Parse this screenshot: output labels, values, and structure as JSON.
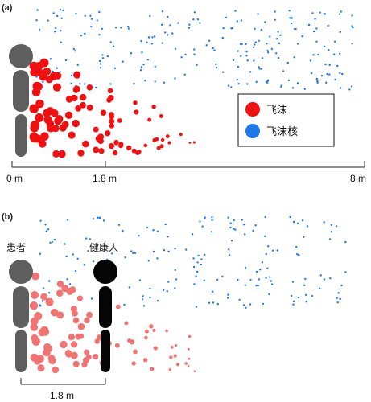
{
  "panel_a": {
    "label": "(a)",
    "scale": {
      "tick_start": "0 m",
      "tick_mid": "1.8 m",
      "tick_end": "8 m"
    },
    "legend": {
      "droplet": {
        "label": "飞沫",
        "color": "#ee1111"
      },
      "droplet_nuclei": {
        "label": "飞沫核",
        "color": "#1f78e8"
      }
    }
  },
  "panel_b": {
    "label": "(b)",
    "patient_label": "患者",
    "healthy_label": "健康人",
    "distance_label": "1.8 m"
  },
  "colors": {
    "person_gray": "#5e5e5e",
    "person_black": "#050505",
    "droplet_red": "#ee1111",
    "droplet_light_red": "#f07474",
    "nuclei_blue": "#1f78e8"
  },
  "icons": {
    "person_figure": "standing-person-icon"
  }
}
